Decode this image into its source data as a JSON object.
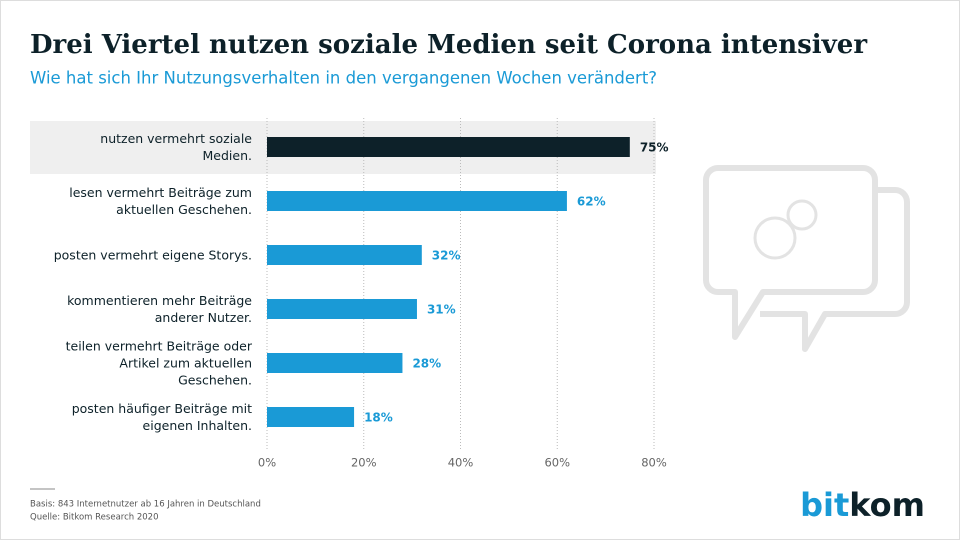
{
  "chart_data": {
    "type": "barh",
    "title": "Drei Viertel nutzen soziale Medien seit Corona intensiver",
    "subtitle": "Wie hat sich Ihr Nutzungsverhalten in den vergangenen Wochen verändert?",
    "categories": [
      "nutzen vermehrt soziale Medien.",
      "lesen vermehrt Beiträge zum aktuellen Geschehen.",
      "posten vermehrt eigene Storys.",
      "kommentieren mehr Beiträge anderer Nutzer.",
      "teilen vermehrt Beiträge oder Artikel zum aktuellen Geschehen.",
      "posten häufiger Beiträge mit eigenen Inhalten."
    ],
    "values": [
      75,
      62,
      32,
      31,
      28,
      18
    ],
    "value_labels": [
      "75%",
      "62%",
      "32%",
      "31%",
      "28%",
      "18%"
    ],
    "color": "#1a9ad6",
    "highlight_color": "#0d2129",
    "highlight_index": 0,
    "xlim": [
      0,
      80
    ],
    "xticks": [
      {
        "value": 0,
        "label": "0%"
      },
      {
        "value": 20,
        "label": "20%"
      },
      {
        "value": 40,
        "label": "40%"
      },
      {
        "value": 60,
        "label": "60%"
      },
      {
        "value": 80,
        "label": "80%"
      }
    ],
    "grid": true,
    "notes": [
      "Basis: 843 Internetnutzer ab 16 Jahren in Deutschland",
      "Quelle: Bitkom Research 2020"
    ],
    "logo": [
      "bit",
      "kom"
    ]
  }
}
